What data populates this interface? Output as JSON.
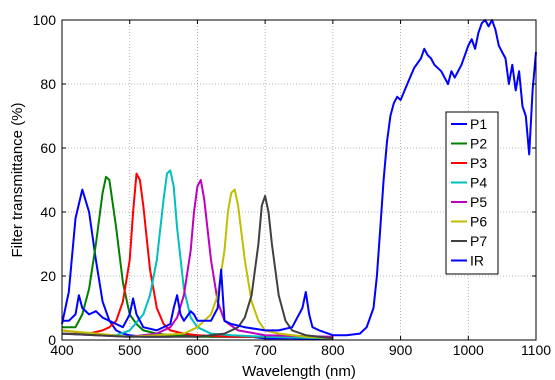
{
  "chart_data": {
    "type": "line",
    "title": "",
    "xlabel": "Wavelength (nm)",
    "ylabel": "Filter transmittance (%)",
    "xlim": [
      400,
      1100
    ],
    "ylim": [
      0,
      100
    ],
    "xticks": [
      "400",
      "500",
      "600",
      "700",
      "800",
      "900",
      "1000",
      "1100"
    ],
    "yticks": [
      "0",
      "20",
      "40",
      "60",
      "80",
      "100"
    ],
    "grid": true,
    "legend_position": "right",
    "series": [
      {
        "name": "P1",
        "color": "#0000ff",
        "x": [
          400,
          410,
          420,
          430,
          440,
          450,
          460,
          470,
          480,
          490,
          500,
          520,
          540,
          560,
          580,
          600,
          620,
          640,
          660,
          680,
          700,
          740,
          800
        ],
        "y": [
          5,
          15,
          38,
          47,
          40,
          25,
          12,
          6,
          3,
          2,
          1.5,
          1,
          1,
          1,
          1.5,
          1.5,
          1,
          1,
          1,
          1,
          0.5,
          0.5,
          0.3
        ]
      },
      {
        "name": "P2",
        "color": "#008000",
        "x": [
          400,
          420,
          430,
          440,
          450,
          460,
          465,
          470,
          480,
          490,
          500,
          510,
          520,
          540,
          560,
          600,
          650,
          700,
          800
        ],
        "y": [
          4,
          4,
          8,
          16,
          30,
          46,
          51,
          50,
          35,
          18,
          8,
          5,
          3,
          2,
          1.5,
          1,
          1,
          1,
          0.5
        ]
      },
      {
        "name": "P3",
        "color": "#ff0000",
        "x": [
          400,
          440,
          460,
          470,
          480,
          490,
          500,
          505,
          510,
          515,
          520,
          530,
          540,
          550,
          560,
          580,
          600,
          650,
          700,
          800
        ],
        "y": [
          3,
          2,
          3,
          4,
          6,
          12,
          25,
          40,
          52,
          50,
          42,
          22,
          10,
          5,
          3,
          2,
          1.5,
          1,
          1,
          0.5
        ]
      },
      {
        "name": "P4",
        "color": "#00bfbf",
        "x": [
          400,
          480,
          500,
          520,
          530,
          540,
          550,
          555,
          560,
          565,
          570,
          580,
          590,
          600,
          620,
          650,
          700,
          800
        ],
        "y": [
          2,
          1.5,
          3,
          8,
          14,
          25,
          44,
          52,
          53,
          48,
          35,
          16,
          7,
          4,
          2,
          1.5,
          1,
          0.5
        ]
      },
      {
        "name": "P5",
        "color": "#bf00bf",
        "x": [
          400,
          500,
          540,
          560,
          570,
          580,
          590,
          595,
          600,
          605,
          610,
          620,
          630,
          640,
          660,
          700,
          800
        ],
        "y": [
          2,
          1,
          2,
          4,
          7,
          14,
          28,
          40,
          48,
          50,
          44,
          25,
          12,
          6,
          3,
          1.5,
          1
        ]
      },
      {
        "name": "P6",
        "color": "#bfbf00",
        "x": [
          400,
          500,
          580,
          600,
          620,
          630,
          640,
          645,
          650,
          655,
          660,
          670,
          680,
          690,
          700,
          720,
          760,
          800
        ],
        "y": [
          3,
          1,
          2,
          4,
          8,
          14,
          28,
          40,
          46,
          47,
          42,
          25,
          12,
          6,
          3,
          2,
          1,
          0.5
        ]
      },
      {
        "name": "P7",
        "color": "#404040",
        "x": [
          400,
          500,
          600,
          640,
          660,
          670,
          680,
          690,
          695,
          700,
          705,
          710,
          720,
          730,
          740,
          760,
          800
        ],
        "y": [
          2,
          1,
          1,
          2,
          4,
          7,
          14,
          30,
          42,
          45,
          40,
          30,
          14,
          6,
          3,
          1.5,
          0.5
        ]
      },
      {
        "name": "IR",
        "color": "#0000ff",
        "x": [
          400,
          410,
          420,
          425,
          430,
          440,
          450,
          460,
          470,
          480,
          490,
          500,
          505,
          510,
          520,
          540,
          560,
          565,
          570,
          575,
          580,
          590,
          595,
          600,
          620,
          630,
          635,
          640,
          650,
          670,
          700,
          720,
          740,
          755,
          760,
          765,
          770,
          780,
          800,
          820,
          840,
          850,
          860,
          865,
          870,
          875,
          880,
          885,
          890,
          895,
          900,
          910,
          920,
          930,
          935,
          940,
          945,
          950,
          960,
          970,
          975,
          980,
          990,
          1000,
          1005,
          1010,
          1015,
          1020,
          1025,
          1030,
          1035,
          1040,
          1045,
          1050,
          1055,
          1060,
          1065,
          1070,
          1075,
          1080,
          1085,
          1090,
          1095,
          1100
        ],
        "y": [
          6,
          6,
          8,
          14,
          10,
          8,
          9,
          7,
          6,
          5,
          4,
          8,
          13,
          8,
          4,
          3,
          5,
          10,
          14,
          8,
          6,
          9,
          8,
          6,
          6,
          10,
          22,
          6,
          5,
          4,
          3,
          3,
          4,
          10,
          15,
          8,
          4,
          3,
          1.5,
          1.5,
          2,
          4,
          10,
          20,
          35,
          50,
          62,
          70,
          74,
          76,
          75,
          80,
          85,
          88,
          91,
          89,
          88,
          86,
          84,
          80,
          84,
          82,
          86,
          92,
          94,
          91,
          96,
          99,
          100,
          98,
          100,
          97,
          92,
          90,
          88,
          80,
          86,
          78,
          84,
          73,
          70,
          58,
          78,
          90
        ]
      }
    ]
  }
}
